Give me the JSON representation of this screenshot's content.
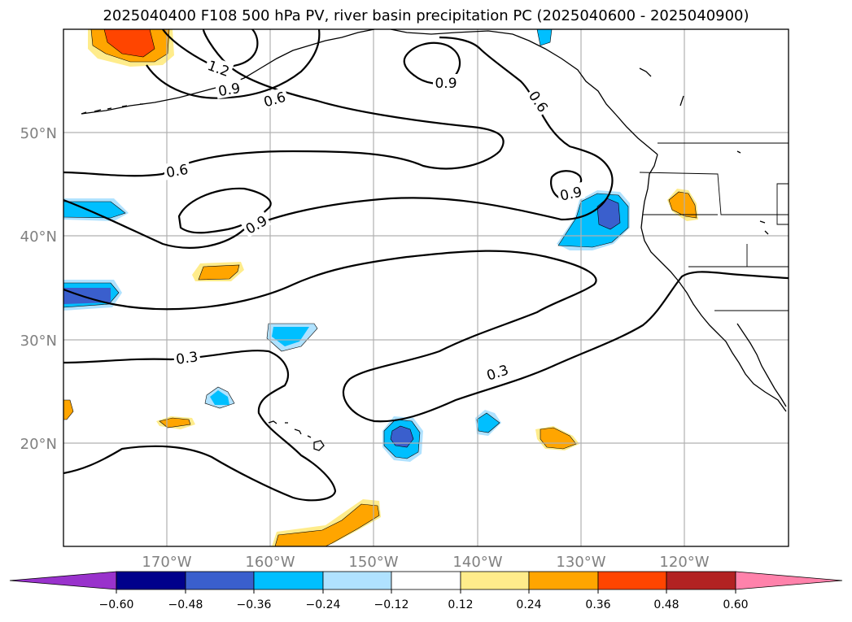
{
  "title": "2025040400 F108 500 hPa PV, river basin precipitation PC (2025040600 - 2025040900)",
  "lat_labels": [
    "50°N",
    "40°N",
    "30°N",
    "20°N"
  ],
  "lon_labels": [
    "170°W",
    "160°W",
    "150°W",
    "140°W",
    "130°W",
    "120°W"
  ],
  "contour_labels": [
    "1.2",
    "0.9",
    "0.6",
    "0.9",
    "0.6",
    "0.6",
    "0.9",
    "0.9",
    "0.3",
    "0.3"
  ],
  "colorbar": {
    "tick_labels": [
      "−0.60",
      "−0.48",
      "−0.36",
      "−0.24",
      "−0.12",
      "0.12",
      "0.24",
      "0.36",
      "0.48",
      "0.60"
    ],
    "colors": [
      "#9932cc",
      "#00008b",
      "#3a5fcd",
      "#00bfff",
      "#b0e2ff",
      "#ffffff",
      "#ffec8b",
      "#ffa500",
      "#ff4500",
      "#b22222",
      "#ff82ab"
    ]
  },
  "fill_colors": {
    "light_blue": "#b0e2ff",
    "blue": "#00bfff",
    "royal_blue": "#3a5fcd",
    "yellow": "#ffec8b",
    "orange": "#ffa500",
    "red_orange": "#ff4500"
  }
}
